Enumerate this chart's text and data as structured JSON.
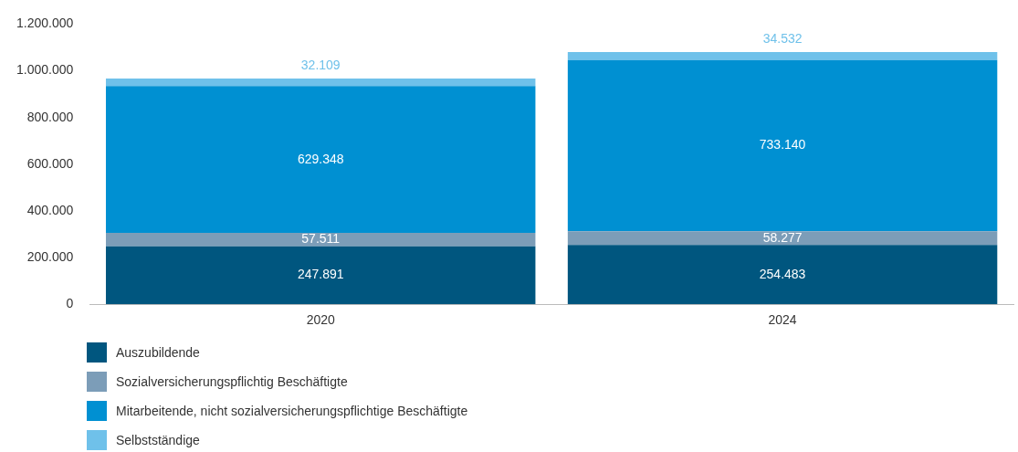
{
  "chart_data": {
    "type": "bar",
    "stacked": true,
    "categories": [
      "2020",
      "2024"
    ],
    "series": [
      {
        "name": "Auszubildende",
        "color": "#00567f",
        "values": [
          247891,
          254483
        ],
        "value_labels": [
          "247.891",
          "254.483"
        ]
      },
      {
        "name": "Sozialversicherungspflichtig Beschäftigte",
        "color": "#7c9db8",
        "values": [
          57511,
          58277
        ],
        "value_labels": [
          "57.511",
          "58.277"
        ]
      },
      {
        "name": "Mitarbeitende, nicht sozialversicherungspflichtige Beschäftigte",
        "color": "#0090d2",
        "values": [
          629348,
          733140
        ],
        "value_labels": [
          "629.348",
          "733.140"
        ]
      },
      {
        "name": "Selbstständige",
        "color": "#6fc1ea",
        "values": [
          32109,
          34532
        ],
        "value_labels": [
          "32.109",
          "34.532"
        ]
      }
    ],
    "ylim": [
      0,
      1200000
    ],
    "yticks": [
      0,
      {
        "value": 200000,
        "label": "200.000"
      },
      {
        "value": 400000,
        "label": "400.000"
      },
      {
        "value": 600000,
        "label": "600.000"
      },
      {
        "value": 800000,
        "label": "800.000"
      },
      {
        "value": 1000000,
        "label": "1.000.000"
      },
      {
        "value": 1200000,
        "label": "1.200.000"
      }
    ],
    "grid": false,
    "legend": "bottom"
  }
}
